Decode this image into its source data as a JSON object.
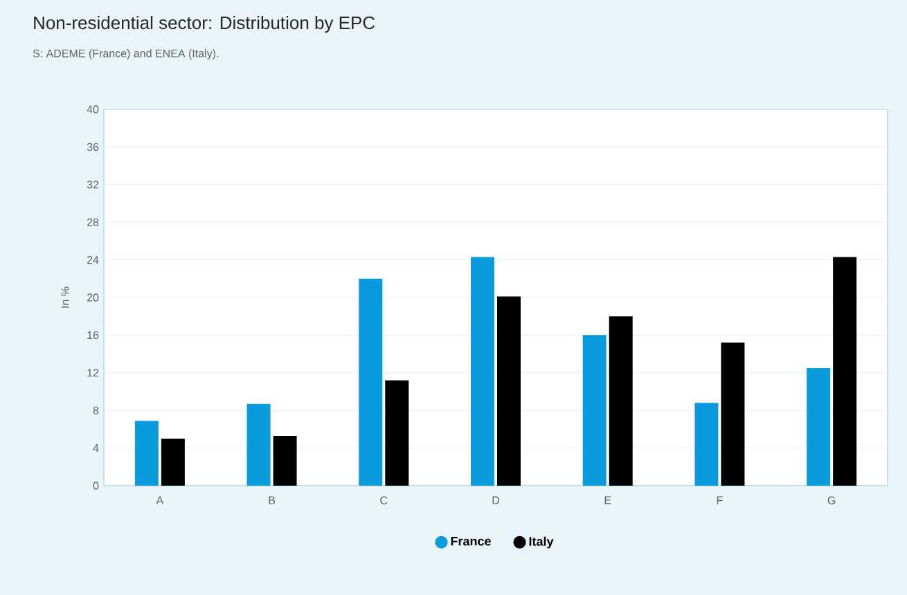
{
  "chart_data": {
    "type": "bar",
    "title": "Non-residential sector: Distribution by EPC",
    "subtitle": "S: ADEME (France) and ENEA (Italy).",
    "ylabel": "In %",
    "categories": [
      "A",
      "B",
      "C",
      "D",
      "E",
      "F",
      "G"
    ],
    "series": [
      {
        "name": "France",
        "color": "#0a9ade",
        "values": [
          6.9,
          8.7,
          22.0,
          24.3,
          16.0,
          8.8,
          12.5
        ]
      },
      {
        "name": "Italy",
        "color": "#000000",
        "values": [
          5.0,
          5.3,
          11.2,
          20.1,
          18.0,
          15.2,
          24.3
        ]
      }
    ],
    "ylim": [
      0,
      40
    ],
    "yticks": [
      0,
      4,
      8,
      12,
      16,
      20,
      24,
      28,
      32,
      36,
      40
    ],
    "grid": "y",
    "legend": "bottom"
  }
}
